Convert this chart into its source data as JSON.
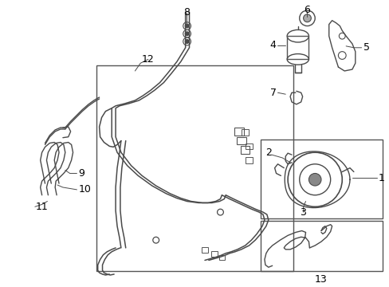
{
  "bg_color": "#ffffff",
  "line_color": "#4a4a4a",
  "box_color": "#555555",
  "label_color": "#000000",
  "fig_width": 4.89,
  "fig_height": 3.6,
  "dpi": 100,
  "font_size": 8.5
}
